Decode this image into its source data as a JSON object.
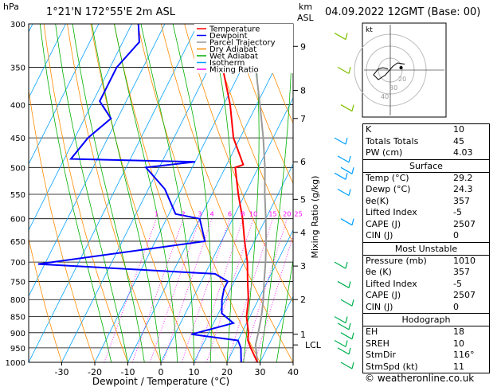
{
  "header": {
    "location": "1°21'N  172°55'E  2m  ASL",
    "date": "04.09.2022  12GMT  (Base: 00)",
    "unit_p": "hPa",
    "unit_km": "km",
    "unit_asl": "ASL"
  },
  "chart_data": {
    "type": "skew-t",
    "xlabel": "Dewpoint / Temperature (°C)",
    "ylabel_right": "Mixing Ratio (g/kg)",
    "ylabel_left": "hPa",
    "x_ticks": [
      -30,
      -20,
      -10,
      0,
      10,
      20,
      30,
      40
    ],
    "pressure_levels": [
      300,
      350,
      400,
      450,
      500,
      550,
      600,
      650,
      700,
      750,
      800,
      850,
      900,
      950,
      1000
    ],
    "km_ticks": [
      {
        "km": "1",
        "p": 905
      },
      {
        "km": "2",
        "p": 800
      },
      {
        "km": "3",
        "p": 710
      },
      {
        "km": "4",
        "p": 630
      },
      {
        "km": "5",
        "p": 560
      },
      {
        "km": "6",
        "p": 490
      },
      {
        "km": "7",
        "p": 420
      },
      {
        "km": "8",
        "p": 380
      },
      {
        "km": "9",
        "p": 325
      }
    ],
    "lcl": {
      "label": "LCL",
      "p": 940
    },
    "mixing_ratio_labels": [
      "1",
      "2",
      "3",
      "4",
      "6",
      "8",
      "10",
      "15",
      "20",
      "25"
    ],
    "legend": [
      "Temperature",
      "Dewpoint",
      "Parcel Trajectory",
      "Dry Adiabat",
      "Wet Adiabat",
      "Isotherm",
      "Mixing Ratio"
    ],
    "legend_colors": [
      "#ff0000",
      "#0000ff",
      "#999999",
      "#ff8c00",
      "#00b000",
      "#00a0ff",
      "#ff00ff"
    ],
    "temperature": [
      {
        "p": 1000,
        "t": 29.2
      },
      {
        "p": 950,
        "t": 25
      },
      {
        "p": 925,
        "t": 23
      },
      {
        "p": 900,
        "t": 22
      },
      {
        "p": 850,
        "t": 19
      },
      {
        "p": 800,
        "t": 17
      },
      {
        "p": 750,
        "t": 14
      },
      {
        "p": 700,
        "t": 11
      },
      {
        "p": 650,
        "t": 7
      },
      {
        "p": 600,
        "t": 3
      },
      {
        "p": 550,
        "t": -2
      },
      {
        "p": 500,
        "t": -7
      },
      {
        "p": 495,
        "t": -5
      },
      {
        "p": 450,
        "t": -12
      },
      {
        "p": 400,
        "t": -18
      },
      {
        "p": 350,
        "t": -26
      },
      {
        "p": 300,
        "t": -35
      }
    ],
    "dewpoint": [
      {
        "p": 1000,
        "t": 24.3
      },
      {
        "p": 950,
        "t": 22
      },
      {
        "p": 925,
        "t": 20
      },
      {
        "p": 905,
        "t": 5
      },
      {
        "p": 870,
        "t": 16
      },
      {
        "p": 840,
        "t": 11
      },
      {
        "p": 800,
        "t": 9
      },
      {
        "p": 770,
        "t": 8
      },
      {
        "p": 750,
        "t": 8
      },
      {
        "p": 730,
        "t": 3
      },
      {
        "p": 705,
        "t": -52
      },
      {
        "p": 650,
        "t": -5
      },
      {
        "p": 600,
        "t": -10
      },
      {
        "p": 590,
        "t": -18
      },
      {
        "p": 540,
        "t": -25
      },
      {
        "p": 500,
        "t": -34
      },
      {
        "p": 490,
        "t": -20
      },
      {
        "p": 485,
        "t": -58
      },
      {
        "p": 450,
        "t": -56
      },
      {
        "p": 420,
        "t": -52
      },
      {
        "p": 395,
        "t": -58
      },
      {
        "p": 350,
        "t": -58
      },
      {
        "p": 320,
        "t": -55
      },
      {
        "p": 300,
        "t": -58
      }
    ],
    "parcel": [
      {
        "p": 1000,
        "t": 29.2
      },
      {
        "p": 940,
        "t": 26
      },
      {
        "p": 900,
        "t": 25
      },
      {
        "p": 850,
        "t": 23.5
      },
      {
        "p": 800,
        "t": 21.5
      },
      {
        "p": 750,
        "t": 19
      },
      {
        "p": 700,
        "t": 16.5
      },
      {
        "p": 650,
        "t": 13.5
      },
      {
        "p": 600,
        "t": 10
      },
      {
        "p": 550,
        "t": 6
      },
      {
        "p": 500,
        "t": 2
      },
      {
        "p": 450,
        "t": -3
      },
      {
        "p": 400,
        "t": -9
      },
      {
        "p": 350,
        "t": -16
      },
      {
        "p": 300,
        "t": -25
      }
    ]
  },
  "hodograph": {
    "unit_label": "kt",
    "ring_labels": [
      "20",
      "30",
      "40"
    ],
    "points": [
      {
        "u": -2,
        "v": 1
      },
      {
        "u": -6,
        "v": 2
      },
      {
        "u": -10,
        "v": 1
      },
      {
        "u": -14,
        "v": -4
      },
      {
        "u": -10,
        "v": -8
      },
      {
        "u": -4,
        "v": -4
      },
      {
        "u": 2,
        "v": 3
      },
      {
        "u": 6,
        "v": 6
      },
      {
        "u": 12,
        "v": 5
      }
    ]
  },
  "indices": [
    {
      "key": "K",
      "value": "10"
    },
    {
      "key": "Totals Totals",
      "value": "45"
    },
    {
      "key": "PW (cm)",
      "value": "4.03"
    }
  ],
  "surface": {
    "title": "Surface",
    "rows": [
      {
        "key": "Temp (°C)",
        "value": "29.2"
      },
      {
        "key": "Dewp (°C)",
        "value": "24.3"
      },
      {
        "key": "θe(K)",
        "value": "357"
      },
      {
        "key": "Lifted Index",
        "value": "-5"
      },
      {
        "key": "CAPE (J)",
        "value": "2507"
      },
      {
        "key": "CIN (J)",
        "value": "0"
      }
    ]
  },
  "most_unstable": {
    "title": "Most Unstable",
    "rows": [
      {
        "key": "Pressure (mb)",
        "value": "1010"
      },
      {
        "key": "θe (K)",
        "value": "357"
      },
      {
        "key": "Lifted Index",
        "value": "-5"
      },
      {
        "key": "CAPE (J)",
        "value": "2507"
      },
      {
        "key": "CIN (J)",
        "value": "0"
      }
    ]
  },
  "hodograph_table": {
    "title": "Hodograph",
    "rows": [
      {
        "key": "EH",
        "value": "18"
      },
      {
        "key": "SREH",
        "value": "10"
      },
      {
        "key": "StmDir",
        "value": "116°"
      },
      {
        "key": "StmSpd (kt)",
        "value": "11"
      }
    ]
  },
  "credit": "© weatheronline.co.uk"
}
